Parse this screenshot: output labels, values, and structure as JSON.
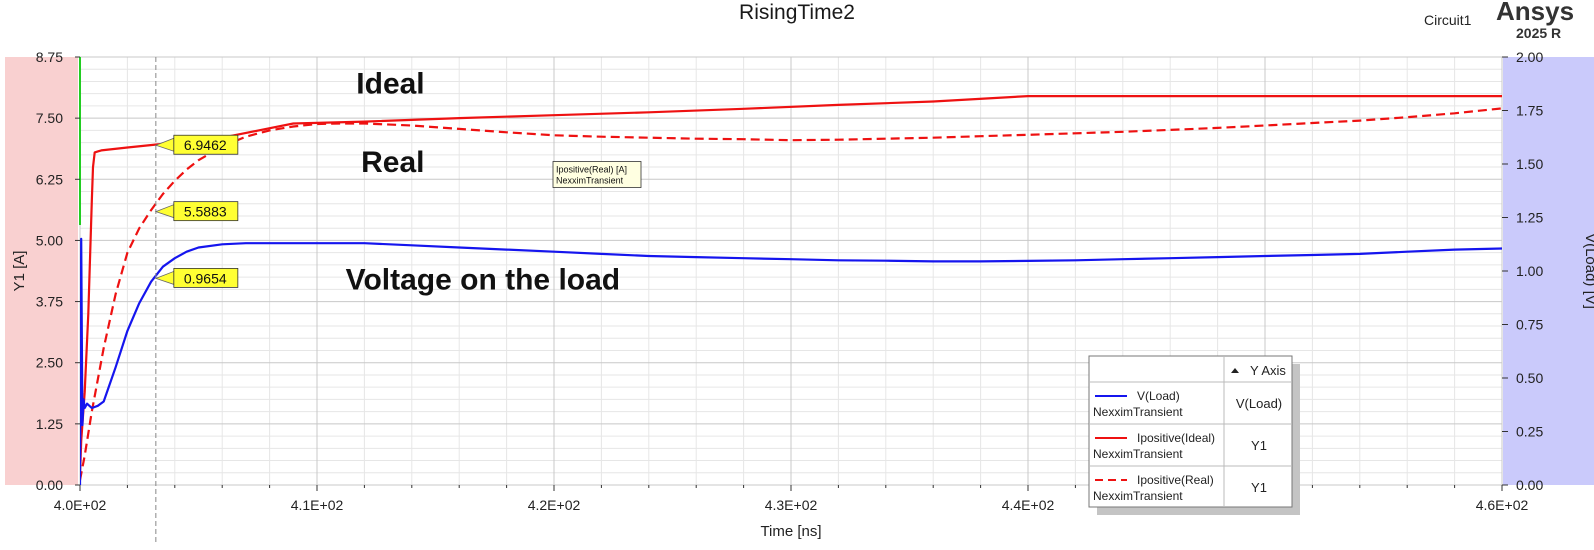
{
  "header": {
    "title": "RisingTime2",
    "project": "Circuit1",
    "brand": "Ansys",
    "version": "2025 R"
  },
  "colors": {
    "y1_band": "#f9d0d0",
    "y2_band": "#cacafb",
    "grid_major": "#c8c8c8",
    "grid_minor": "#e6e6e6",
    "ideal": "#ee1111",
    "real": "#ee1111",
    "voltage": "#1515ee",
    "marker_fill": "#ffff33",
    "axis_green": "#22cc22"
  },
  "chart_data": {
    "type": "line",
    "title": "RisingTime2",
    "xlabel": "Time [ns]",
    "ylabel": "Y1 [A]",
    "y2label": "V(Load) [V]",
    "xlim": [
      400,
      460
    ],
    "ylim": [
      0,
      8.75
    ],
    "y2lim": [
      0,
      2.0
    ],
    "grid": true,
    "x_ticks": [
      {
        "value": 400,
        "label": "4.0E+02"
      },
      {
        "value": 410,
        "label": "4.1E+02"
      },
      {
        "value": 420,
        "label": "4.2E+02"
      },
      {
        "value": 430,
        "label": "4.3E+02"
      },
      {
        "value": 440,
        "label": "4.4E+02"
      },
      {
        "value": 450,
        "label": "4.5E+02"
      },
      {
        "value": 460,
        "label": "4.6E+02"
      }
    ],
    "y_ticks": [
      "0.00",
      "1.25",
      "2.50",
      "3.75",
      "5.00",
      "6.25",
      "7.50",
      "8.75"
    ],
    "y2_ticks": [
      "0.00",
      "0.25",
      "0.50",
      "0.75",
      "1.00",
      "1.25",
      "1.50",
      "1.75",
      "2.00"
    ],
    "series": [
      {
        "name": "Ipositive(Ideal)",
        "axis": "Y1",
        "style": "solid",
        "x": [
          400.0,
          400.05,
          400.2,
          400.35,
          400.5,
          400.55,
          400.62,
          400.75,
          400.9,
          402,
          404,
          406,
          409,
          412,
          416,
          420,
          424,
          428,
          432,
          436,
          440,
          444,
          448,
          452,
          456,
          460
        ],
        "y": [
          0.2,
          0.9,
          1.9,
          3.5,
          5.8,
          6.5,
          6.8,
          6.82,
          6.84,
          6.9,
          7.0,
          7.1,
          7.39,
          7.43,
          7.5,
          7.56,
          7.62,
          7.69,
          7.77,
          7.84,
          7.95,
          7.95,
          7.95,
          7.95,
          7.95,
          7.95
        ]
      },
      {
        "name": "Ipositive(Real)",
        "axis": "Y1",
        "style": "dashed",
        "x": [
          400.0,
          400.2,
          400.5,
          401,
          401.5,
          402,
          402.5,
          403,
          403.5,
          404,
          404.5,
          405,
          406,
          407,
          408,
          409,
          410,
          411,
          412,
          414,
          416,
          418,
          420,
          422,
          424,
          426,
          428,
          430,
          432,
          434,
          436,
          438,
          440,
          442,
          444,
          446,
          448,
          450,
          452,
          454,
          456,
          458,
          459,
          460
        ],
        "y": [
          0.1,
          0.6,
          1.5,
          2.8,
          3.9,
          4.75,
          5.25,
          5.62,
          5.95,
          6.22,
          6.45,
          6.64,
          6.92,
          7.12,
          7.25,
          7.33,
          7.38,
          7.39,
          7.39,
          7.35,
          7.28,
          7.21,
          7.15,
          7.12,
          7.1,
          7.08,
          7.07,
          7.05,
          7.06,
          7.08,
          7.1,
          7.13,
          7.16,
          7.19,
          7.22,
          7.26,
          7.3,
          7.35,
          7.4,
          7.45,
          7.52,
          7.6,
          7.65,
          7.7
        ]
      },
      {
        "name": "V(Load)",
        "axis": "V(Load)",
        "style": "solid",
        "x": [
          400.0,
          400.05,
          400.1,
          400.15,
          400.2,
          400.3,
          400.5,
          400.75,
          401,
          401.5,
          402,
          402.5,
          403,
          403.5,
          404,
          404.5,
          405,
          406,
          407,
          408,
          410,
          412,
          414,
          416,
          418,
          420,
          422,
          424,
          426,
          428,
          430,
          432,
          434,
          436,
          438,
          440,
          442,
          444,
          446,
          448,
          450,
          452,
          454,
          456,
          458,
          460
        ],
        "y": [
          0.0,
          1.15,
          0.28,
          0.4,
          0.36,
          0.38,
          0.36,
          0.37,
          0.39,
          0.55,
          0.72,
          0.85,
          0.95,
          1.02,
          1.06,
          1.09,
          1.11,
          1.125,
          1.13,
          1.13,
          1.13,
          1.13,
          1.12,
          1.11,
          1.1,
          1.09,
          1.08,
          1.07,
          1.065,
          1.06,
          1.055,
          1.05,
          1.048,
          1.045,
          1.045,
          1.047,
          1.05,
          1.055,
          1.06,
          1.065,
          1.07,
          1.075,
          1.08,
          1.09,
          1.1,
          1.105
        ]
      }
    ],
    "cursor_x": 403.2,
    "markers": [
      {
        "label": "6.9462",
        "series": "Ipositive(Ideal)",
        "x": 403.2,
        "y": 6.9462
      },
      {
        "label": "5.5883",
        "series": "Ipositive(Real)",
        "x": 403.2,
        "y": 5.5883
      },
      {
        "label": "0.9654",
        "series": "V(Load)",
        "x": 403.2,
        "y": 0.9654
      }
    ],
    "annotations": [
      {
        "text": "Ideal",
        "x": 413.1,
        "y": 8.0
      },
      {
        "text": "Real",
        "x": 413.2,
        "y": 6.4
      },
      {
        "text": "Voltage on the load",
        "x": 417.0,
        "y": 4.0
      }
    ],
    "tooltip": {
      "line1": "Ipositive(Real) [A]",
      "line2": "NexximTransient",
      "x": 420.0,
      "y": 6.45
    },
    "legend": {
      "placement": "bottom-right",
      "header": "Y Axis",
      "rows": [
        {
          "name": "V(Load)",
          "source": "NexximTransient",
          "axis": "V(Load)",
          "style": "solid",
          "color": "#1515ee"
        },
        {
          "name": "Ipositive(Ideal)",
          "source": "NexximTransient",
          "axis": "Y1",
          "style": "solid",
          "color": "#ee1111"
        },
        {
          "name": "Ipositive(Real)",
          "source": "NexximTransient",
          "axis": "Y1",
          "style": "dashed",
          "color": "#ee1111"
        }
      ]
    }
  }
}
